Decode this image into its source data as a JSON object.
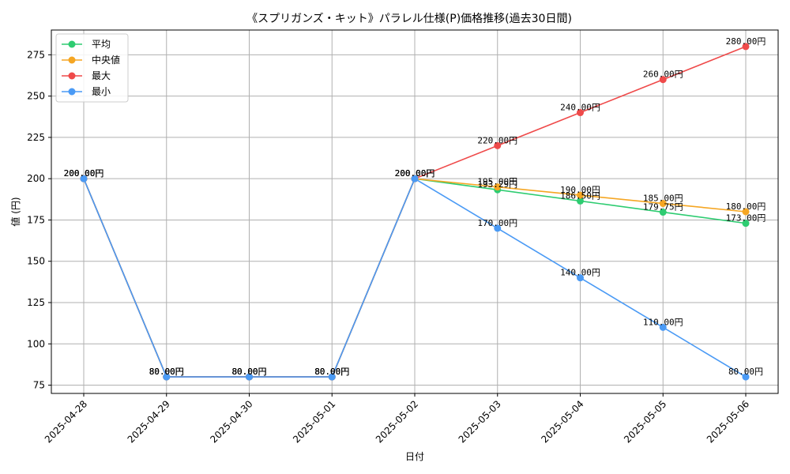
{
  "chart_data": {
    "type": "line",
    "title": "《スプリガンズ・キット》パラレル仕様(P)価格推移(過去30日間)",
    "xlabel": "日付",
    "ylabel": "値 (円)",
    "ylim": [
      70,
      290
    ],
    "yticks": [
      75,
      100,
      125,
      150,
      175,
      200,
      225,
      250,
      275
    ],
    "grid": true,
    "legend_position": "top-left",
    "label_suffix": "円",
    "categories": [
      "2025-04-28",
      "2025-04-29",
      "2025-04-30",
      "2025-05-01",
      "2025-05-02",
      "2025-05-03",
      "2025-05-04",
      "2025-05-05",
      "2025-05-06"
    ],
    "series": [
      {
        "name": "平均",
        "color": "#2ecc71",
        "values": [
          200,
          80,
          80,
          80,
          200,
          193.29,
          186.5,
          179.75,
          173.0
        ]
      },
      {
        "name": "中央値",
        "color": "#f5a623",
        "values": [
          200,
          80,
          80,
          80,
          200,
          195.0,
          190.0,
          185.0,
          180.0
        ]
      },
      {
        "name": "最大",
        "color": "#ef4a4a",
        "values": [
          200,
          80,
          80,
          80,
          200,
          220.0,
          240.0,
          260.0,
          280.0
        ]
      },
      {
        "name": "最小",
        "color": "#4a9af5",
        "values": [
          200,
          80,
          80,
          80,
          200,
          170.0,
          140.0,
          110.0,
          80.0
        ]
      }
    ]
  }
}
